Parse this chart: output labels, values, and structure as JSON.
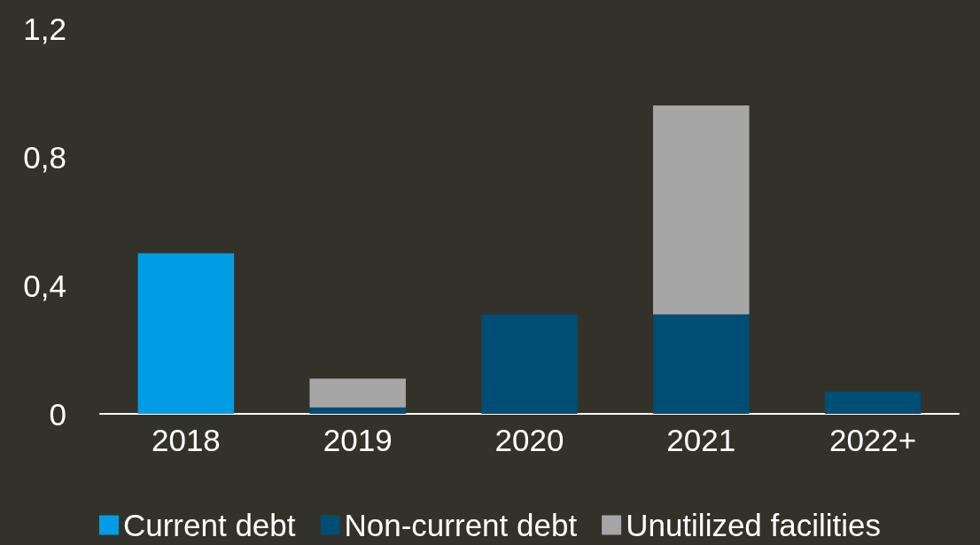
{
  "chart_data": {
    "type": "bar",
    "stacked": true,
    "categories": [
      "2018",
      "2019",
      "2020",
      "2021",
      "2022+"
    ],
    "series": [
      {
        "name": "Current debt",
        "color": "#009de6",
        "values": [
          0.5,
          null,
          null,
          null,
          null
        ]
      },
      {
        "name": "Non-current debt",
        "color": "#004e73",
        "values": [
          null,
          0.02,
          0.31,
          0.31,
          0.07
        ]
      },
      {
        "name": "Unutilized facilities",
        "color": "#a6a6a6",
        "values": [
          null,
          0.09,
          null,
          0.65,
          null
        ]
      }
    ],
    "ylim": [
      0,
      1.2
    ],
    "yticks": [
      0,
      {
        "value": 0.4,
        "label": "0,4"
      },
      {
        "value": 0.8,
        "label": "0,8"
      },
      {
        "value": 1.2,
        "label": "1,2"
      }
    ],
    "grid": false,
    "legend": "bottom"
  }
}
